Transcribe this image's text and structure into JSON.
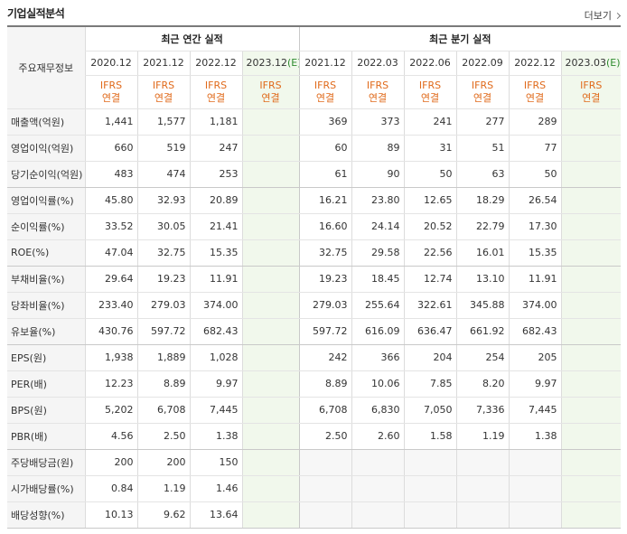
{
  "header": {
    "title": "기업실적분석",
    "more_label": "더보기"
  },
  "table": {
    "row_header_label": "주요재무정보",
    "groups": {
      "annual": "최근 연간 실적",
      "quarterly": "최근 분기 실적"
    },
    "annual_periods": [
      "2020.12",
      "2021.12",
      "2022.12",
      "2023.12(E)"
    ],
    "quarterly_periods": [
      "2021.12",
      "2022.03",
      "2022.06",
      "2022.09",
      "2022.12",
      "2023.03(E)"
    ],
    "standard_top": "IFRS",
    "standard_bottom": "연결",
    "rows": [
      {
        "label": "매출액(억원)",
        "annual": [
          "1,441",
          "1,577",
          "1,181",
          ""
        ],
        "quarterly": [
          "369",
          "373",
          "241",
          "277",
          "289",
          ""
        ]
      },
      {
        "label": "영업이익(억원)",
        "annual": [
          "660",
          "519",
          "247",
          ""
        ],
        "quarterly": [
          "60",
          "89",
          "31",
          "51",
          "77",
          ""
        ]
      },
      {
        "label": "당기순이익(억원)",
        "annual": [
          "483",
          "474",
          "253",
          ""
        ],
        "quarterly": [
          "61",
          "90",
          "50",
          "63",
          "50",
          ""
        ]
      },
      {
        "label": "영업이익률(%)",
        "annual": [
          "45.80",
          "32.93",
          "20.89",
          ""
        ],
        "quarterly": [
          "16.21",
          "23.80",
          "12.65",
          "18.29",
          "26.54",
          ""
        ]
      },
      {
        "label": "순이익률(%)",
        "annual": [
          "33.52",
          "30.05",
          "21.41",
          ""
        ],
        "quarterly": [
          "16.60",
          "24.14",
          "20.52",
          "22.79",
          "17.30",
          ""
        ]
      },
      {
        "label": "ROE(%)",
        "annual": [
          "47.04",
          "32.75",
          "15.35",
          ""
        ],
        "quarterly": [
          "32.75",
          "29.58",
          "22.56",
          "16.01",
          "15.35",
          ""
        ]
      },
      {
        "label": "부채비율(%)",
        "annual": [
          "29.64",
          "19.23",
          "11.91",
          ""
        ],
        "quarterly": [
          "19.23",
          "18.45",
          "12.74",
          "13.10",
          "11.91",
          ""
        ]
      },
      {
        "label": "당좌비율(%)",
        "annual": [
          "233.40",
          "279.03",
          "374.00",
          ""
        ],
        "quarterly": [
          "279.03",
          "255.64",
          "322.61",
          "345.88",
          "374.00",
          ""
        ]
      },
      {
        "label": "유보율(%)",
        "annual": [
          "430.76",
          "597.72",
          "682.43",
          ""
        ],
        "quarterly": [
          "597.72",
          "616.09",
          "636.47",
          "661.92",
          "682.43",
          ""
        ]
      },
      {
        "label": "EPS(원)",
        "annual": [
          "1,938",
          "1,889",
          "1,028",
          ""
        ],
        "quarterly": [
          "242",
          "366",
          "204",
          "254",
          "205",
          ""
        ]
      },
      {
        "label": "PER(배)",
        "annual": [
          "12.23",
          "8.89",
          "9.97",
          ""
        ],
        "quarterly": [
          "8.89",
          "10.06",
          "7.85",
          "8.20",
          "9.97",
          ""
        ]
      },
      {
        "label": "BPS(원)",
        "annual": [
          "5,202",
          "6,708",
          "7,445",
          ""
        ],
        "quarterly": [
          "6,708",
          "6,830",
          "7,050",
          "7,336",
          "7,445",
          ""
        ]
      },
      {
        "label": "PBR(배)",
        "annual": [
          "4.56",
          "2.50",
          "1.38",
          ""
        ],
        "quarterly": [
          "2.50",
          "2.60",
          "1.58",
          "1.19",
          "1.38",
          ""
        ]
      },
      {
        "label": "주당배당금(원)",
        "annual": [
          "200",
          "200",
          "150",
          ""
        ],
        "quarterly": [
          "",
          "",
          "",
          "",
          "",
          ""
        ]
      },
      {
        "label": "시가배당률(%)",
        "annual": [
          "0.84",
          "1.19",
          "1.46",
          ""
        ],
        "quarterly": [
          "",
          "",
          "",
          "",
          "",
          ""
        ]
      },
      {
        "label": "배당성향(%)",
        "annual": [
          "10.13",
          "9.62",
          "13.64",
          ""
        ],
        "quarterly": [
          "",
          "",
          "",
          "",
          "",
          ""
        ]
      }
    ]
  }
}
